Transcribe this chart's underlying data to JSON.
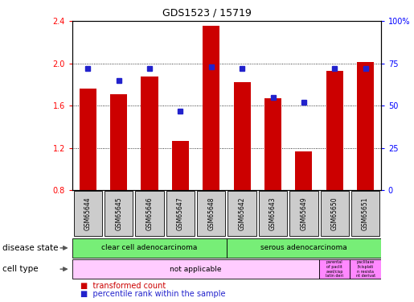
{
  "title": "GDS1523 / 15719",
  "samples": [
    "GSM65644",
    "GSM65645",
    "GSM65646",
    "GSM65647",
    "GSM65648",
    "GSM65642",
    "GSM65643",
    "GSM65649",
    "GSM65650",
    "GSM65651"
  ],
  "transformed_count": [
    1.76,
    1.71,
    1.88,
    1.27,
    2.36,
    1.82,
    1.67,
    1.17,
    1.93,
    2.01
  ],
  "percentile_rank": [
    72,
    65,
    72,
    47,
    73,
    72,
    55,
    52,
    72,
    72
  ],
  "ylim": [
    0.8,
    2.4
  ],
  "yticks": [
    0.8,
    1.2,
    1.6,
    2.0,
    2.4
  ],
  "right_yticks": [
    0,
    25,
    50,
    75,
    100
  ],
  "bar_color": "#cc0000",
  "dot_color": "#2222cc",
  "bar_width": 0.55,
  "disease_state_labels": [
    "clear cell adenocarcinoma",
    "serous adenocarcinoma"
  ],
  "disease_state_color": "#77ee77",
  "cell_type_label_main": "not applicable",
  "cell_type_label_small1": "parental\nof paclit\naxel/cisp\nlatin deri",
  "cell_type_label_small2": "paclitaxe\nl/cisplati\nn resista\nnt derivat",
  "cell_type_color_main": "#ffccff",
  "cell_type_color_small": "#ff88ff",
  "label_disease": "disease state",
  "label_cell": "cell type",
  "legend_red": "transformed count",
  "legend_blue": "percentile rank within the sample",
  "sample_bg": "#cccccc"
}
